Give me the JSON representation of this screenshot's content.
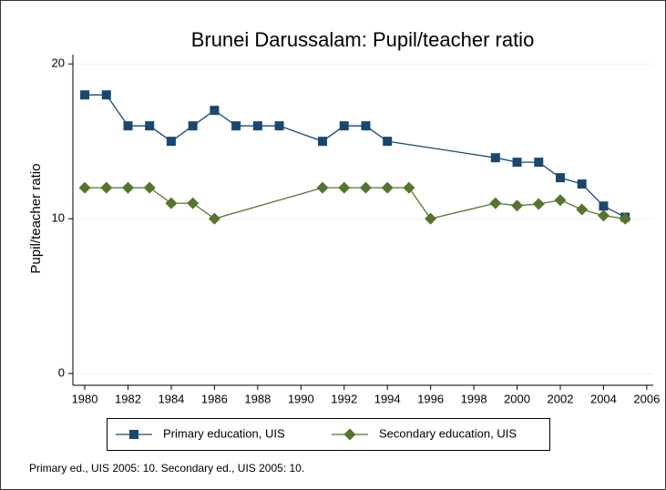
{
  "chart_data": {
    "type": "line",
    "title": "Brunei Darussalam: Pupil/teacher ratio",
    "ylabel": "Pupil/teacher ratio",
    "note": "Primary ed., UIS 2005: 10. Secondary ed., UIS 2005: 10.",
    "xlim": [
      1979.45,
      2006.3
    ],
    "xticks": [
      1980,
      1982,
      1984,
      1986,
      1988,
      1990,
      1992,
      1994,
      1996,
      1998,
      2000,
      2002,
      2004,
      2006
    ],
    "ylim": [
      -0.76,
      20.6
    ],
    "yticks": [
      0,
      10,
      20
    ],
    "grid": true,
    "legend": "bottom",
    "series": [
      {
        "name": "Primary education, UIS",
        "color": "#1a476f",
        "marker": "square",
        "x": [
          1980,
          1981,
          1982,
          1983,
          1984,
          1985,
          1986,
          1987,
          1988,
          1989,
          1991,
          1992,
          1993,
          1994,
          1999,
          2000,
          2001,
          2002,
          2003,
          2004,
          2005
        ],
        "values": [
          18,
          18,
          16,
          16,
          15,
          16,
          17,
          16,
          16,
          16,
          15,
          16,
          16,
          15,
          13.94,
          13.65,
          13.65,
          12.65,
          12.24,
          10.82,
          10.1
        ]
      },
      {
        "name": "Secondary education, UIS",
        "color": "#55752f",
        "marker": "diamond",
        "x": [
          1980,
          1981,
          1982,
          1983,
          1984,
          1985,
          1986,
          1991,
          1992,
          1993,
          1994,
          1995,
          1996,
          1999,
          2000,
          2001,
          2002,
          2003,
          2004,
          2005
        ],
        "values": [
          12,
          12,
          12,
          12,
          11,
          11,
          10,
          12,
          12,
          12,
          12,
          12,
          10,
          11,
          10.85,
          10.95,
          11.2,
          10.6,
          10.2,
          10.0
        ]
      }
    ]
  }
}
